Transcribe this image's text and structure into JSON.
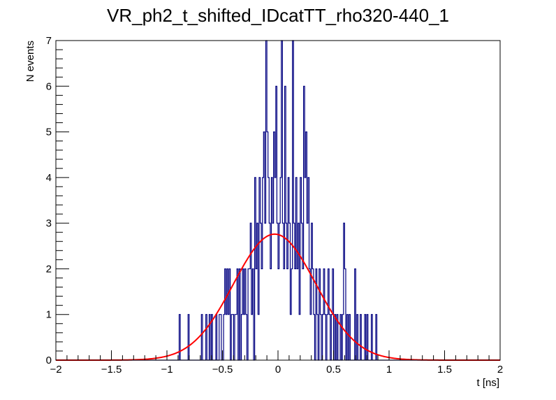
{
  "chart_data": {
    "type": "line",
    "title": "VR_ph2_t_shifted_IDcatTT_rho320-440_1",
    "xlabel": "t [ns]",
    "ylabel": "N events",
    "xlim": [
      -2,
      2
    ],
    "ylim": [
      0,
      7
    ],
    "x_ticks": [
      "−2",
      "−1.5",
      "−1",
      "−0.5",
      "0",
      "0.5",
      "1",
      "1.5",
      "2"
    ],
    "x_tick_values": [
      -2,
      -1.5,
      -1,
      -0.5,
      0,
      0.5,
      1,
      1.5,
      2
    ],
    "y_ticks": [
      "0",
      "1",
      "2",
      "3",
      "4",
      "5",
      "6",
      "7"
    ],
    "y_tick_values": [
      0,
      1,
      2,
      3,
      4,
      5,
      6,
      7
    ],
    "grid": false,
    "legend": "none",
    "series": [
      {
        "kind": "histogram",
        "color": "#000080",
        "bin_width": 0.01,
        "bins": [
          [
            -0.89,
            1
          ],
          [
            -0.81,
            1
          ],
          [
            -0.69,
            1
          ],
          [
            -0.65,
            1
          ],
          [
            -0.62,
            1
          ],
          [
            -0.6,
            1
          ],
          [
            -0.56,
            1
          ],
          [
            -0.53,
            1
          ],
          [
            -0.52,
            1
          ],
          [
            -0.49,
            1
          ],
          [
            -0.48,
            2
          ],
          [
            -0.47,
            1
          ],
          [
            -0.46,
            2
          ],
          [
            -0.45,
            1
          ],
          [
            -0.44,
            2
          ],
          [
            -0.42,
            1
          ],
          [
            -0.41,
            1
          ],
          [
            -0.39,
            1
          ],
          [
            -0.38,
            1
          ],
          [
            -0.37,
            2
          ],
          [
            -0.35,
            2
          ],
          [
            -0.33,
            1
          ],
          [
            -0.32,
            2
          ],
          [
            -0.31,
            1
          ],
          [
            -0.3,
            2
          ],
          [
            -0.29,
            1
          ],
          [
            -0.27,
            2
          ],
          [
            -0.26,
            2
          ],
          [
            -0.25,
            3
          ],
          [
            -0.24,
            1
          ],
          [
            -0.23,
            2
          ],
          [
            -0.21,
            4
          ],
          [
            -0.2,
            2
          ],
          [
            -0.19,
            3
          ],
          [
            -0.18,
            1
          ],
          [
            -0.17,
            4
          ],
          [
            -0.16,
            3
          ],
          [
            -0.15,
            2
          ],
          [
            -0.14,
            4
          ],
          [
            -0.13,
            5
          ],
          [
            -0.12,
            3
          ],
          [
            -0.11,
            7
          ],
          [
            -0.1,
            5
          ],
          [
            -0.09,
            4
          ],
          [
            -0.08,
            3
          ],
          [
            -0.07,
            2
          ],
          [
            -0.06,
            4
          ],
          [
            -0.05,
            3
          ],
          [
            -0.04,
            5
          ],
          [
            -0.03,
            4
          ],
          [
            -0.02,
            6
          ],
          [
            -0.01,
            3
          ],
          [
            0.0,
            2
          ],
          [
            0.01,
            3
          ],
          [
            0.02,
            4
          ],
          [
            0.03,
            7
          ],
          [
            0.04,
            3
          ],
          [
            0.05,
            2
          ],
          [
            0.06,
            6
          ],
          [
            0.07,
            3
          ],
          [
            0.08,
            2
          ],
          [
            0.09,
            4
          ],
          [
            0.1,
            3
          ],
          [
            0.11,
            1
          ],
          [
            0.12,
            2
          ],
          [
            0.13,
            7
          ],
          [
            0.14,
            3
          ],
          [
            0.15,
            2
          ],
          [
            0.16,
            4
          ],
          [
            0.17,
            2
          ],
          [
            0.18,
            3
          ],
          [
            0.19,
            1
          ],
          [
            0.2,
            4
          ],
          [
            0.21,
            3
          ],
          [
            0.22,
            2
          ],
          [
            0.23,
            6
          ],
          [
            0.24,
            4
          ],
          [
            0.25,
            5
          ],
          [
            0.26,
            3
          ],
          [
            0.27,
            4
          ],
          [
            0.28,
            2
          ],
          [
            0.29,
            1
          ],
          [
            0.3,
            3
          ],
          [
            0.31,
            2
          ],
          [
            0.32,
            1
          ],
          [
            0.34,
            2
          ],
          [
            0.35,
            1
          ],
          [
            0.37,
            2
          ],
          [
            0.38,
            1
          ],
          [
            0.4,
            1
          ],
          [
            0.41,
            2
          ],
          [
            0.42,
            1
          ],
          [
            0.44,
            1
          ],
          [
            0.45,
            2
          ],
          [
            0.46,
            1
          ],
          [
            0.48,
            1
          ],
          [
            0.49,
            2
          ],
          [
            0.51,
            1
          ],
          [
            0.53,
            1
          ],
          [
            0.56,
            1
          ],
          [
            0.58,
            1
          ],
          [
            0.59,
            3
          ],
          [
            0.6,
            2
          ],
          [
            0.62,
            1
          ],
          [
            0.64,
            1
          ],
          [
            0.69,
            2
          ],
          [
            0.71,
            1
          ],
          [
            0.74,
            1
          ],
          [
            0.78,
            1
          ],
          [
            0.8,
            1
          ],
          [
            0.84,
            1
          ],
          [
            0.88,
            1
          ]
        ]
      },
      {
        "kind": "gaussian_fit",
        "color": "#ff0000",
        "amplitude": 2.76,
        "mean": -0.03,
        "sigma": 0.37
      }
    ]
  }
}
